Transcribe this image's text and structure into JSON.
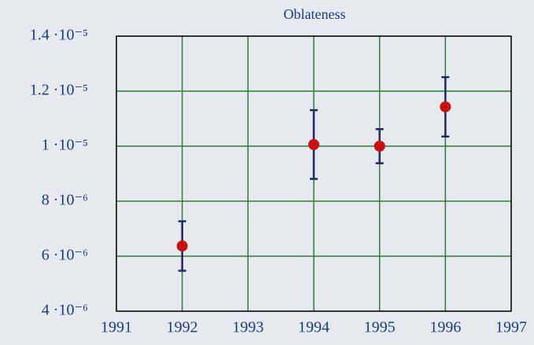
{
  "chart_data": {
    "type": "errorbar",
    "title": "Oblateness",
    "x": [
      1992,
      1994,
      1995,
      1996
    ],
    "values": [
      6.37e-06,
      1.006e-05,
      1e-05,
      1.143e-05
    ],
    "errors": [
      9e-07,
      1.25e-06,
      6.2e-07,
      1.08e-06
    ],
    "color": "#cc1010",
    "error_color": "#1a2a6c",
    "grid_color": "#2e7d32",
    "xlim": [
      1991,
      1997
    ],
    "xticks": [
      1991,
      1992,
      1993,
      1994,
      1995,
      1996,
      1997
    ],
    "ylim": [
      4e-06,
      1.4e-05
    ],
    "yticks": [
      {
        "value": 4e-06,
        "label": "4 ·10⁻⁶"
      },
      {
        "value": 6e-06,
        "label": "6 ·10⁻⁶"
      },
      {
        "value": 8e-06,
        "label": "8 ·10⁻⁶"
      },
      {
        "value": 1e-05,
        "label": "1 ·10⁻⁵"
      },
      {
        "value": 1.2e-05,
        "label": "1.2 ·10⁻⁵"
      },
      {
        "value": 1.4e-05,
        "label": "1.4 ·10⁻⁵"
      }
    ],
    "grid": true
  }
}
